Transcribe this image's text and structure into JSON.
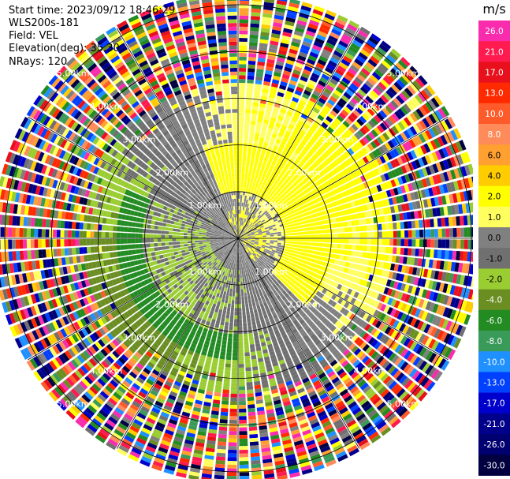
{
  "header": {
    "start_time": "Start time: 2023/09/12 18:46:29",
    "instrument": "WLS200s-181",
    "field": "Field: VEL",
    "elevation": "Elevation(deg): 35.30",
    "nrays": "NRays: 120"
  },
  "colorbar": {
    "unit": "m/s",
    "ticks": [
      "26.0",
      "21.0",
      "17.0",
      "13.0",
      "10.0",
      "8.0",
      "6.0",
      "4.0",
      "2.0",
      "1.0",
      "0.0",
      "-1.0",
      "-2.0",
      "-4.0",
      "-6.0",
      "-8.0",
      "-10.0",
      "-13.0",
      "-17.0",
      "-21.0",
      "-26.0",
      "-30.0"
    ],
    "colors": [
      "#f82cad",
      "#ff1a50",
      "#e8101c",
      "#ff2a00",
      "#ff5a2a",
      "#ff8a5a",
      "#ffa030",
      "#ffcc00",
      "#ffff00",
      "#ffff60",
      "#808080",
      "#707070",
      "#9acd32",
      "#6b8e23",
      "#228b22",
      "#3a9a5a",
      "#1e90ff",
      "#0040ff",
      "#0000cd",
      "#00008b",
      "#000070",
      "#000040"
    ]
  },
  "chart_data": {
    "type": "ppi",
    "field": "VEL",
    "units": "m/s",
    "nrays": 120,
    "elevation_deg": 35.3,
    "range_rings_km": [
      1.0,
      2.0,
      3.0,
      4.0,
      5.0
    ],
    "ring_labels": [
      "1.00km",
      "2.00km",
      "3.00km",
      "4.00km",
      "5.00km"
    ],
    "max_range_km": 5.2,
    "spokes_deg": [
      0,
      30,
      60,
      90,
      120,
      150,
      180,
      210,
      240,
      270,
      300,
      330
    ],
    "noise_outside_km": 3.3
  }
}
